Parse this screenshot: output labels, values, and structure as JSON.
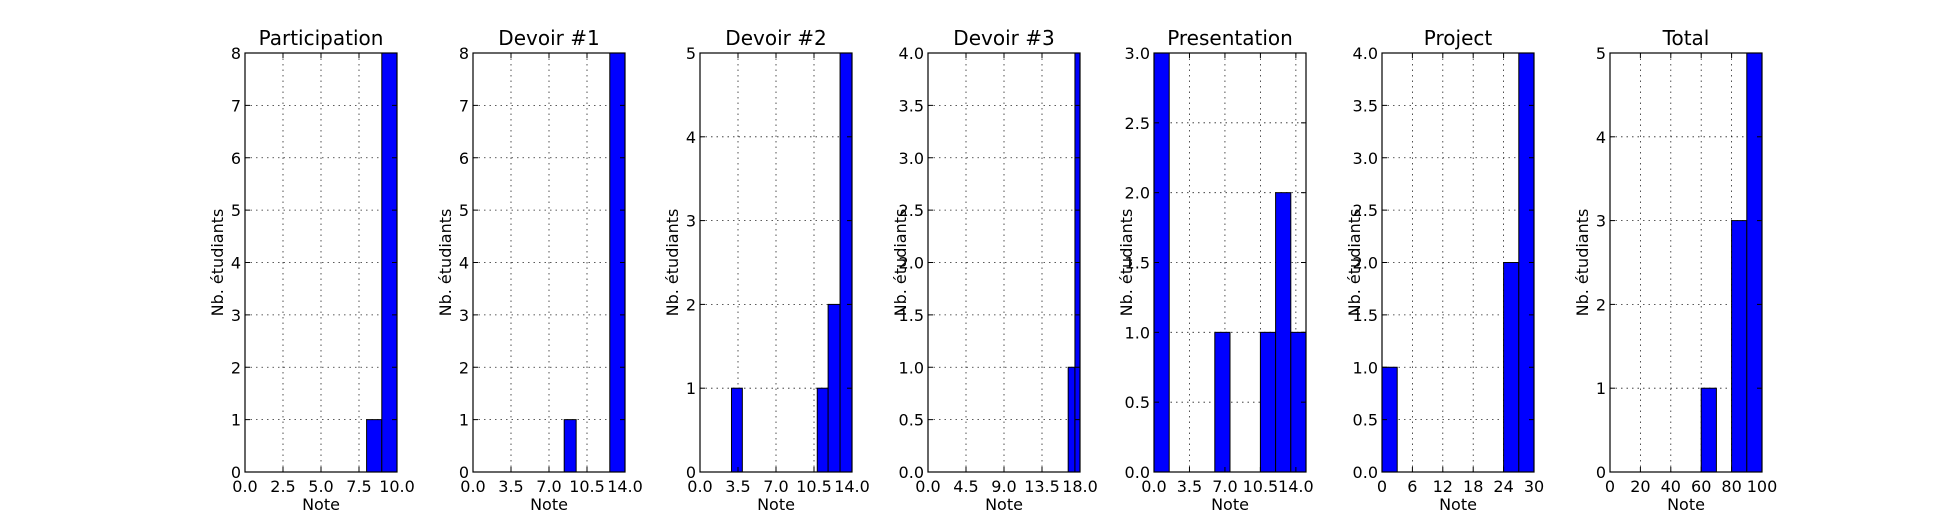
{
  "ylabel": "Nb. étudiants",
  "xlabel": "Note",
  "colors": {
    "bar": "#0000ff",
    "edge": "#000000",
    "background": "#ffffff"
  },
  "chart_data": [
    {
      "type": "bar",
      "title": "Participation",
      "xlabel": "Note",
      "ylabel": "Nb. étudiants",
      "xlim": [
        0,
        10
      ],
      "ylim": [
        0,
        8
      ],
      "grid": true,
      "xticks": [
        0,
        2.5,
        5,
        7.5,
        10
      ],
      "xtick_labels": [
        "0.0",
        "2.5",
        "5.0",
        "7.5",
        "10.0"
      ],
      "yticks": [
        0,
        1,
        2,
        3,
        4,
        5,
        6,
        7,
        8
      ],
      "ytick_labels": [
        "0",
        "1",
        "2",
        "3",
        "4",
        "5",
        "6",
        "7",
        "8"
      ],
      "bins": [
        [
          8,
          9,
          1
        ],
        [
          9,
          10,
          8
        ]
      ]
    },
    {
      "type": "bar",
      "title": "Devoir #1",
      "xlabel": "Note",
      "ylabel": "Nb. étudiants",
      "xlim": [
        0,
        14
      ],
      "ylim": [
        0,
        8
      ],
      "grid": true,
      "xticks": [
        0,
        3.5,
        7,
        10.5,
        14
      ],
      "xtick_labels": [
        "0.0",
        "3.5",
        "7.0",
        "10.5",
        "14.0"
      ],
      "yticks": [
        0,
        1,
        2,
        3,
        4,
        5,
        6,
        7,
        8
      ],
      "ytick_labels": [
        "0",
        "1",
        "2",
        "3",
        "4",
        "5",
        "6",
        "7",
        "8"
      ],
      "bins": [
        [
          8.4,
          9.5,
          1
        ],
        [
          12.6,
          14,
          8
        ]
      ]
    },
    {
      "type": "bar",
      "title": "Devoir #2",
      "xlabel": "Note",
      "ylabel": "Nb. étudiants",
      "xlim": [
        0,
        14
      ],
      "ylim": [
        0,
        5
      ],
      "grid": true,
      "xticks": [
        0,
        3.5,
        7,
        10.5,
        14
      ],
      "xtick_labels": [
        "0.0",
        "3.5",
        "7.0",
        "10.5",
        "14.0"
      ],
      "yticks": [
        0,
        1,
        2,
        3,
        4,
        5
      ],
      "ytick_labels": [
        "0",
        "1",
        "2",
        "3",
        "4",
        "5"
      ],
      "bins": [
        [
          2.9,
          3.9,
          1
        ],
        [
          10.8,
          11.8,
          1
        ],
        [
          11.8,
          12.9,
          2
        ],
        [
          12.9,
          14,
          5
        ]
      ]
    },
    {
      "type": "bar",
      "title": "Devoir #3",
      "xlabel": "Note",
      "ylabel": "Nb. étudiants",
      "xlim": [
        0,
        18
      ],
      "ylim": [
        0,
        4
      ],
      "grid": true,
      "xticks": [
        0,
        4.5,
        9,
        13.5,
        18
      ],
      "xtick_labels": [
        "0.0",
        "4.5",
        "9.0",
        "13.5",
        "18.0"
      ],
      "yticks": [
        0,
        0.5,
        1,
        1.5,
        2,
        2.5,
        3,
        3.5,
        4
      ],
      "ytick_labels": [
        "0.0",
        "0.5",
        "1.0",
        "1.5",
        "2.0",
        "2.5",
        "3.0",
        "3.5",
        "4.0"
      ],
      "bins": [
        [
          16.6,
          17.4,
          1
        ],
        [
          17.4,
          18,
          4
        ]
      ]
    },
    {
      "type": "bar",
      "title": "Presentation",
      "xlabel": "Note",
      "ylabel": "Nb. étudiants",
      "xlim": [
        0,
        15
      ],
      "ylim": [
        0,
        3
      ],
      "grid": true,
      "xticks": [
        0,
        3.5,
        7,
        10.5,
        14
      ],
      "xtick_labels": [
        "0.0",
        "3.5",
        "7.0",
        "10.5",
        "14.0"
      ],
      "yticks": [
        0,
        0.5,
        1,
        1.5,
        2,
        2.5,
        3
      ],
      "ytick_labels": [
        "0.0",
        "0.5",
        "1.0",
        "1.5",
        "2.0",
        "2.5",
        "3.0"
      ],
      "bins": [
        [
          0,
          1.5,
          3
        ],
        [
          6,
          7.5,
          1
        ],
        [
          10.5,
          12,
          1
        ],
        [
          12,
          13.5,
          2
        ],
        [
          13.5,
          15,
          1
        ]
      ]
    },
    {
      "type": "bar",
      "title": "Project",
      "xlabel": "Note",
      "ylabel": "Nb. étudiants",
      "xlim": [
        0,
        30
      ],
      "ylim": [
        0,
        4
      ],
      "grid": true,
      "xticks": [
        0,
        6,
        12,
        18,
        24,
        30
      ],
      "xtick_labels": [
        "0",
        "6",
        "12",
        "18",
        "24",
        "30"
      ],
      "yticks": [
        0,
        0.5,
        1,
        1.5,
        2,
        2.5,
        3,
        3.5,
        4
      ],
      "ytick_labels": [
        "0.0",
        "0.5",
        "1.0",
        "1.5",
        "2.0",
        "2.5",
        "3.0",
        "3.5",
        "4.0"
      ],
      "bins": [
        [
          0,
          3,
          1
        ],
        [
          24,
          27,
          2
        ],
        [
          27,
          30,
          4
        ]
      ]
    },
    {
      "type": "bar",
      "title": "Total",
      "xlabel": "Note",
      "ylabel": "Nb. étudiants",
      "xlim": [
        0,
        100
      ],
      "ylim": [
        0,
        5
      ],
      "grid": true,
      "xticks": [
        0,
        20,
        40,
        60,
        80,
        100
      ],
      "xtick_labels": [
        "0",
        "20",
        "40",
        "60",
        "80",
        "100"
      ],
      "yticks": [
        0,
        1,
        2,
        3,
        4,
        5
      ],
      "ytick_labels": [
        "0",
        "1",
        "2",
        "3",
        "4",
        "5"
      ],
      "bins": [
        [
          60,
          70,
          1
        ],
        [
          80,
          90,
          3
        ],
        [
          90,
          100,
          5
        ]
      ]
    }
  ]
}
